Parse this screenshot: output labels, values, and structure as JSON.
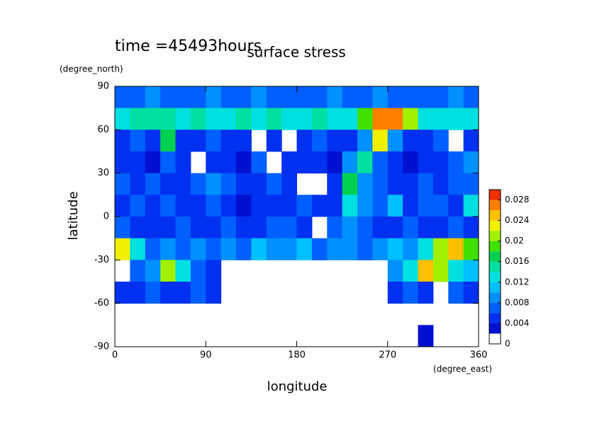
{
  "chart_data": {
    "type": "heatmap",
    "title": "surface stress",
    "annotation": "time =45493hours",
    "y_label": "latitude",
    "x_label": "longitude",
    "y_unit": "(degree_north)",
    "x_unit": "(degree_east)",
    "xlim": [
      0,
      360
    ],
    "xticks": [
      0,
      90,
      180,
      270,
      360
    ],
    "ylim": [
      -90,
      90
    ],
    "yticks": [
      -90,
      -60,
      -30,
      0,
      30,
      60,
      90
    ],
    "x": [
      7.5,
      22.5,
      37.5,
      52.5,
      67.5,
      82.5,
      97.5,
      112.5,
      127.5,
      142.5,
      157.5,
      172.5,
      187.5,
      202.5,
      217.5,
      232.5,
      247.5,
      262.5,
      277.5,
      292.5,
      307.5,
      322.5,
      337.5,
      352.5
    ],
    "y": [
      82.5,
      67.5,
      52.5,
      37.5,
      22.5,
      7.5,
      -7.5,
      -22.5,
      -37.5,
      -52.5,
      -67.5,
      -82.5
    ],
    "values": [
      [
        0.007,
        0.007,
        0.008,
        0.007,
        0.007,
        0.007,
        0.008,
        0.007,
        0.007,
        0.008,
        0.007,
        0.007,
        0.007,
        0.007,
        0.008,
        0.007,
        0.007,
        0.008,
        0.007,
        0.007,
        0.007,
        0.007,
        0.008,
        0.007
      ],
      [
        0.013,
        0.014,
        0.015,
        0.014,
        0.013,
        0.014,
        0.013,
        0.012,
        0.014,
        0.013,
        0.015,
        0.013,
        0.012,
        0.014,
        0.013,
        0.012,
        0.018,
        0.026,
        0.027,
        0.02,
        0.013,
        0.012,
        0.013,
        0.012
      ],
      [
        0.005,
        0.006,
        0.004,
        0.017,
        0.005,
        0.004,
        0.006,
        0.005,
        0.004,
        null,
        0.004,
        null,
        0.005,
        0.006,
        0.004,
        0.005,
        0.009,
        0.022,
        0.008,
        0.005,
        0.004,
        0.006,
        null,
        0.005
      ],
      [
        0.005,
        0.004,
        0.003,
        0.006,
        0.005,
        null,
        0.004,
        0.005,
        0.003,
        0.006,
        null,
        0.004,
        0.005,
        0.004,
        0.003,
        0.008,
        0.014,
        0.006,
        0.005,
        0.003,
        0.004,
        0.005,
        0.006,
        0.008
      ],
      [
        0.006,
        0.005,
        0.007,
        0.004,
        0.005,
        0.006,
        0.008,
        0.006,
        0.004,
        0.005,
        0.007,
        0.004,
        null,
        null,
        0.005,
        0.016,
        0.008,
        0.006,
        0.005,
        0.004,
        0.006,
        0.005,
        0.007,
        0.006
      ],
      [
        0.005,
        0.006,
        0.004,
        0.007,
        0.005,
        0.004,
        0.006,
        0.005,
        0.003,
        0.004,
        0.005,
        0.004,
        0.006,
        0.004,
        0.005,
        0.013,
        0.008,
        0.006,
        0.01,
        0.005,
        0.007,
        0.006,
        0.004,
        0.013
      ],
      [
        0.006,
        0.005,
        0.004,
        0.005,
        0.006,
        0.004,
        0.005,
        0.006,
        0.004,
        0.005,
        0.007,
        0.006,
        0.005,
        null,
        0.006,
        0.009,
        0.006,
        0.004,
        0.005,
        0.006,
        0.004,
        0.005,
        0.006,
        0.005
      ],
      [
        0.022,
        0.012,
        0.007,
        0.009,
        0.006,
        0.008,
        0.006,
        0.009,
        0.007,
        0.011,
        0.009,
        0.008,
        0.01,
        0.007,
        0.009,
        0.008,
        0.007,
        0.009,
        0.011,
        0.008,
        0.012,
        0.021,
        0.025,
        0.018
      ],
      [
        null,
        0.006,
        0.008,
        0.02,
        0.012,
        0.006,
        0.005,
        null,
        null,
        null,
        null,
        null,
        null,
        null,
        null,
        null,
        null,
        null,
        0.008,
        0.012,
        0.024,
        0.02,
        0.012,
        0.01
      ],
      [
        0.004,
        0.005,
        0.006,
        0.004,
        0.005,
        0.006,
        0.004,
        null,
        null,
        null,
        null,
        null,
        null,
        null,
        null,
        null,
        null,
        null,
        0.005,
        0.006,
        0.005,
        null,
        0.006,
        0.005
      ],
      [
        null,
        null,
        null,
        null,
        null,
        null,
        null,
        null,
        null,
        null,
        null,
        null,
        null,
        null,
        null,
        null,
        null,
        null,
        null,
        null,
        null,
        null,
        null,
        null
      ],
      [
        null,
        null,
        null,
        null,
        null,
        null,
        null,
        null,
        null,
        null,
        null,
        null,
        null,
        null,
        null,
        null,
        null,
        null,
        null,
        null,
        0.003,
        null,
        null,
        null
      ]
    ],
    "colorbar": {
      "levels": [
        0,
        0.002,
        0.004,
        0.006,
        0.008,
        0.01,
        0.012,
        0.014,
        0.016,
        0.018,
        0.02,
        0.022,
        0.024,
        0.026,
        0.028,
        0.03
      ],
      "colors": [
        "#ffffff",
        "#0010d0",
        "#0030f0",
        "#0060ff",
        "#0090ff",
        "#00c0ff",
        "#00e0e0",
        "#00e0a0",
        "#00d050",
        "#40e000",
        "#a0f000",
        "#f0f000",
        "#ffc000",
        "#ff8000",
        "#f03000"
      ],
      "ticks": [
        0,
        0.004,
        0.008,
        0.012,
        0.016,
        0.02,
        0.024,
        0.028
      ]
    }
  }
}
